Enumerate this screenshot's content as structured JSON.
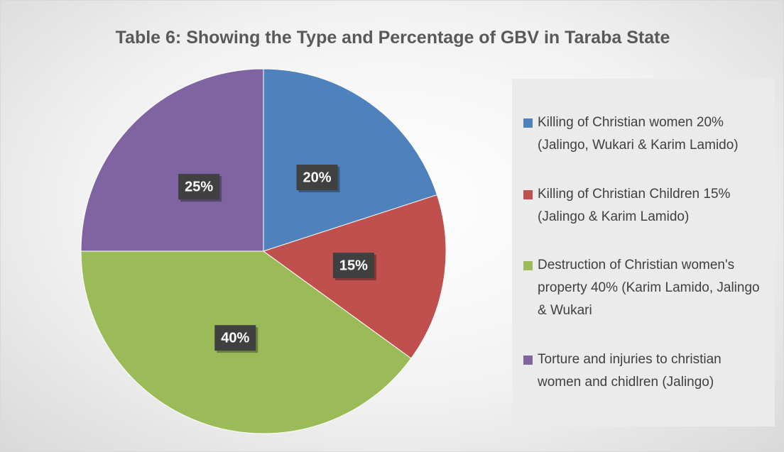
{
  "chart_data": {
    "type": "pie",
    "title": "Table 6: Showing the Type and Percentage of GBV in Taraba State",
    "categories": [
      "Killing of Christian women 20% (Jalingo, Wukari & Karim Lamido)",
      "Killing of Christian Children 15% (Jalingo & Karim Lamido)",
      "Destruction of Christian women's property 40% (Karim Lamido, Jalingo & Wukari",
      "Torture and injuries to christian women and chidlren (Jalingo)"
    ],
    "values": [
      20,
      15,
      40,
      25
    ],
    "value_labels": [
      "20%",
      "15%",
      "40%",
      "25%"
    ],
    "colors": [
      "#4f81bd",
      "#c0504d",
      "#9bbb59",
      "#8064a2"
    ],
    "legend": "right"
  }
}
